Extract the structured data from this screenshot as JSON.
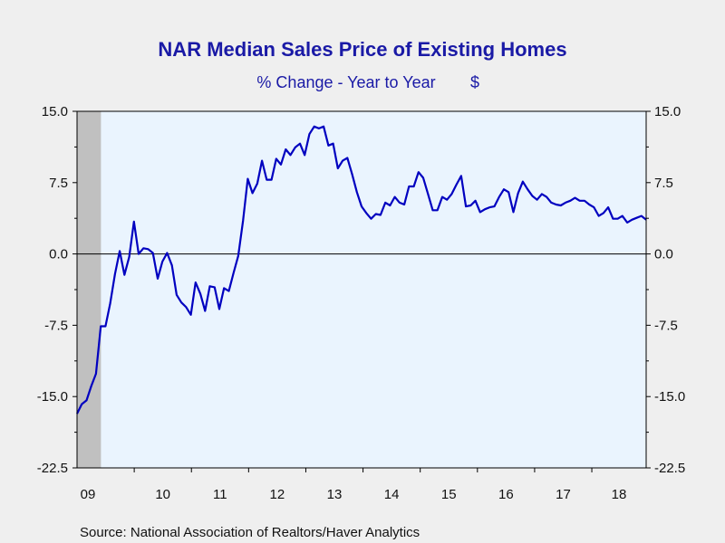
{
  "chart_data": {
    "type": "line",
    "title": "NAR Median Sales Price of Existing Homes",
    "subtitle": "% Change - Year to Year",
    "unit_label": "$",
    "ylim": [
      -22.5,
      15.0
    ],
    "y_ticks": [
      "15.0",
      "7.5",
      "0.0",
      "-7.5",
      "-15.0",
      "-22.5"
    ],
    "x_labels": [
      "09",
      "10",
      "11",
      "12",
      "13",
      "14",
      "15",
      "16",
      "17",
      "18"
    ],
    "x_range": [
      2009.0,
      2018.95
    ],
    "shaded_recession": [
      2009.0,
      2009.45
    ],
    "grid": false,
    "zero_line": true,
    "source": "Source:  National Association of Realtors/Haver Analytics",
    "colors": {
      "line": "#0000c0",
      "title": "#1a1aa6",
      "plot_bg": "#eaf4fe",
      "page_bg": "#efefef",
      "recession": "#c0c0c0"
    },
    "series": [
      {
        "values": [
          -16.8,
          -15.8,
          -15.4,
          -13.9,
          -12.6,
          -7.6,
          -7.6,
          -5.2,
          -2.1,
          0.3,
          -2.2,
          -0.3,
          3.4,
          0.0,
          0.6,
          0.5,
          0.1,
          -2.6,
          -0.8,
          0.1,
          -1.2,
          -4.3,
          -5.1,
          -5.6,
          -6.4,
          -3.0,
          -4.2,
          -6.0,
          -3.4,
          -3.5,
          -5.8,
          -3.6,
          -3.9,
          -2.0,
          -0.2,
          3.5,
          7.9,
          6.4,
          7.4,
          9.8,
          7.8,
          7.8,
          10.0,
          9.4,
          11.0,
          10.4,
          11.2,
          11.6,
          10.4,
          12.6,
          13.4,
          13.2,
          13.4,
          11.4,
          11.6,
          9.0,
          9.8,
          10.1,
          8.4,
          6.5,
          5.0,
          4.3,
          3.7,
          4.2,
          4.1,
          5.4,
          5.1,
          6.0,
          5.4,
          5.2,
          7.1,
          7.1,
          8.6,
          8.0,
          6.3,
          4.6,
          4.6,
          6.0,
          5.7,
          6.3,
          7.3,
          8.2,
          5.0,
          5.1,
          5.6,
          4.4,
          4.7,
          4.9,
          5.0,
          6.0,
          6.8,
          6.5,
          4.4,
          6.4,
          7.6,
          6.8,
          6.1,
          5.7,
          6.3,
          6.0,
          5.4,
          5.2,
          5.1,
          5.4,
          5.6,
          5.9,
          5.6,
          5.6,
          5.2,
          4.9,
          4.0,
          4.3,
          4.9,
          3.7,
          3.7,
          4.0,
          3.3,
          3.6,
          3.8,
          4.0,
          3.6
        ]
      }
    ]
  }
}
